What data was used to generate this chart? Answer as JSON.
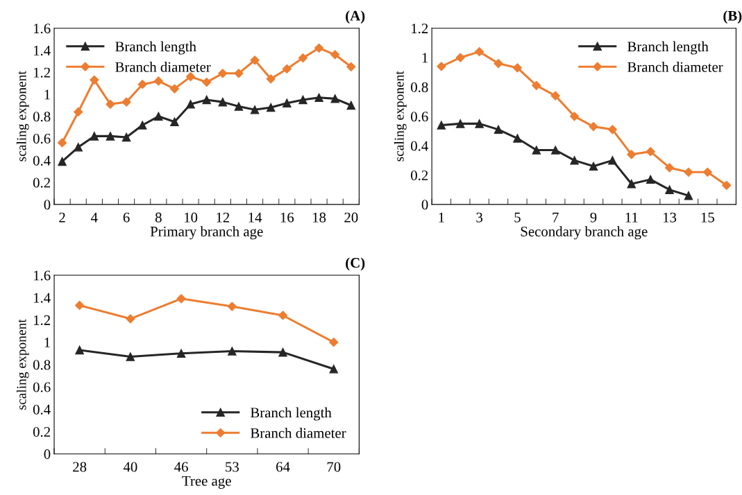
{
  "chart_data": [
    {
      "type": "line",
      "title": "(A)",
      "xlabel": "Primary branch age",
      "ylabel": "scaling exponent",
      "legend": "top left",
      "grid": false,
      "categories": [
        "2",
        null,
        "4",
        null,
        "6",
        null,
        "8",
        null,
        "10",
        null,
        "12",
        null,
        "14",
        null,
        "16",
        null,
        "18",
        null,
        "20"
      ],
      "ylim": [
        0,
        1.6
      ],
      "yticks": [
        0,
        0.2,
        0.4,
        0.6,
        0.8,
        1,
        1.2,
        1.4,
        1.6
      ],
      "series": [
        {
          "name": "Branch length",
          "color": "#262626",
          "marker": "triangle",
          "values": [
            0.39,
            0.52,
            0.62,
            0.62,
            0.61,
            0.72,
            0.8,
            0.75,
            0.91,
            0.95,
            0.93,
            0.89,
            0.86,
            0.88,
            0.92,
            0.95,
            0.97,
            0.96,
            0.9
          ]
        },
        {
          "name": "Branch diameter",
          "color": "#ed7d31",
          "marker": "diamond",
          "values": [
            0.56,
            0.84,
            1.13,
            0.91,
            0.93,
            1.09,
            1.12,
            1.05,
            1.16,
            1.11,
            1.19,
            1.19,
            1.31,
            1.14,
            1.23,
            1.33,
            1.42,
            1.36,
            1.25
          ]
        }
      ]
    },
    {
      "type": "line",
      "title": "(B)",
      "xlabel": "Secondary branch age",
      "ylabel": "scaling exponent",
      "legend": "top right",
      "grid": false,
      "categories": [
        "1",
        null,
        "3",
        null,
        "5",
        null,
        "7",
        null,
        "9",
        null,
        "11",
        null,
        "13",
        null,
        "15",
        null
      ],
      "ylim": [
        0,
        1.2
      ],
      "yticks": [
        0,
        0.2,
        0.4,
        0.6,
        0.8,
        1,
        1.2
      ],
      "series": [
        {
          "name": "Branch length",
          "color": "#262626",
          "marker": "triangle",
          "values": [
            0.54,
            0.55,
            0.55,
            0.51,
            0.45,
            0.37,
            0.37,
            0.3,
            0.26,
            0.3,
            0.14,
            0.17,
            0.1,
            0.06,
            null,
            null
          ]
        },
        {
          "name": "Branch diameter",
          "color": "#ed7d31",
          "marker": "diamond",
          "values": [
            0.94,
            1.0,
            1.04,
            0.96,
            0.93,
            0.81,
            0.74,
            0.6,
            0.53,
            0.51,
            0.34,
            0.36,
            0.25,
            0.22,
            0.22,
            0.13
          ]
        }
      ]
    },
    {
      "type": "line",
      "title": "(C)",
      "xlabel": "Tree age",
      "ylabel": "scaling exponent",
      "legend": "bottom right",
      "grid": false,
      "categories": [
        "28",
        "40",
        "46",
        "53",
        "64",
        "70"
      ],
      "ylim": [
        0,
        1.6
      ],
      "yticks": [
        0,
        0.2,
        0.4,
        0.6,
        0.8,
        1,
        1.2,
        1.4,
        1.6
      ],
      "series": [
        {
          "name": "Branch length",
          "color": "#262626",
          "marker": "triangle",
          "values": [
            0.93,
            0.87,
            0.9,
            0.92,
            0.91,
            0.76
          ]
        },
        {
          "name": "Branch diameter",
          "color": "#ed7d31",
          "marker": "diamond",
          "values": [
            1.33,
            1.21,
            1.39,
            1.32,
            1.24,
            1.0
          ]
        }
      ]
    }
  ]
}
